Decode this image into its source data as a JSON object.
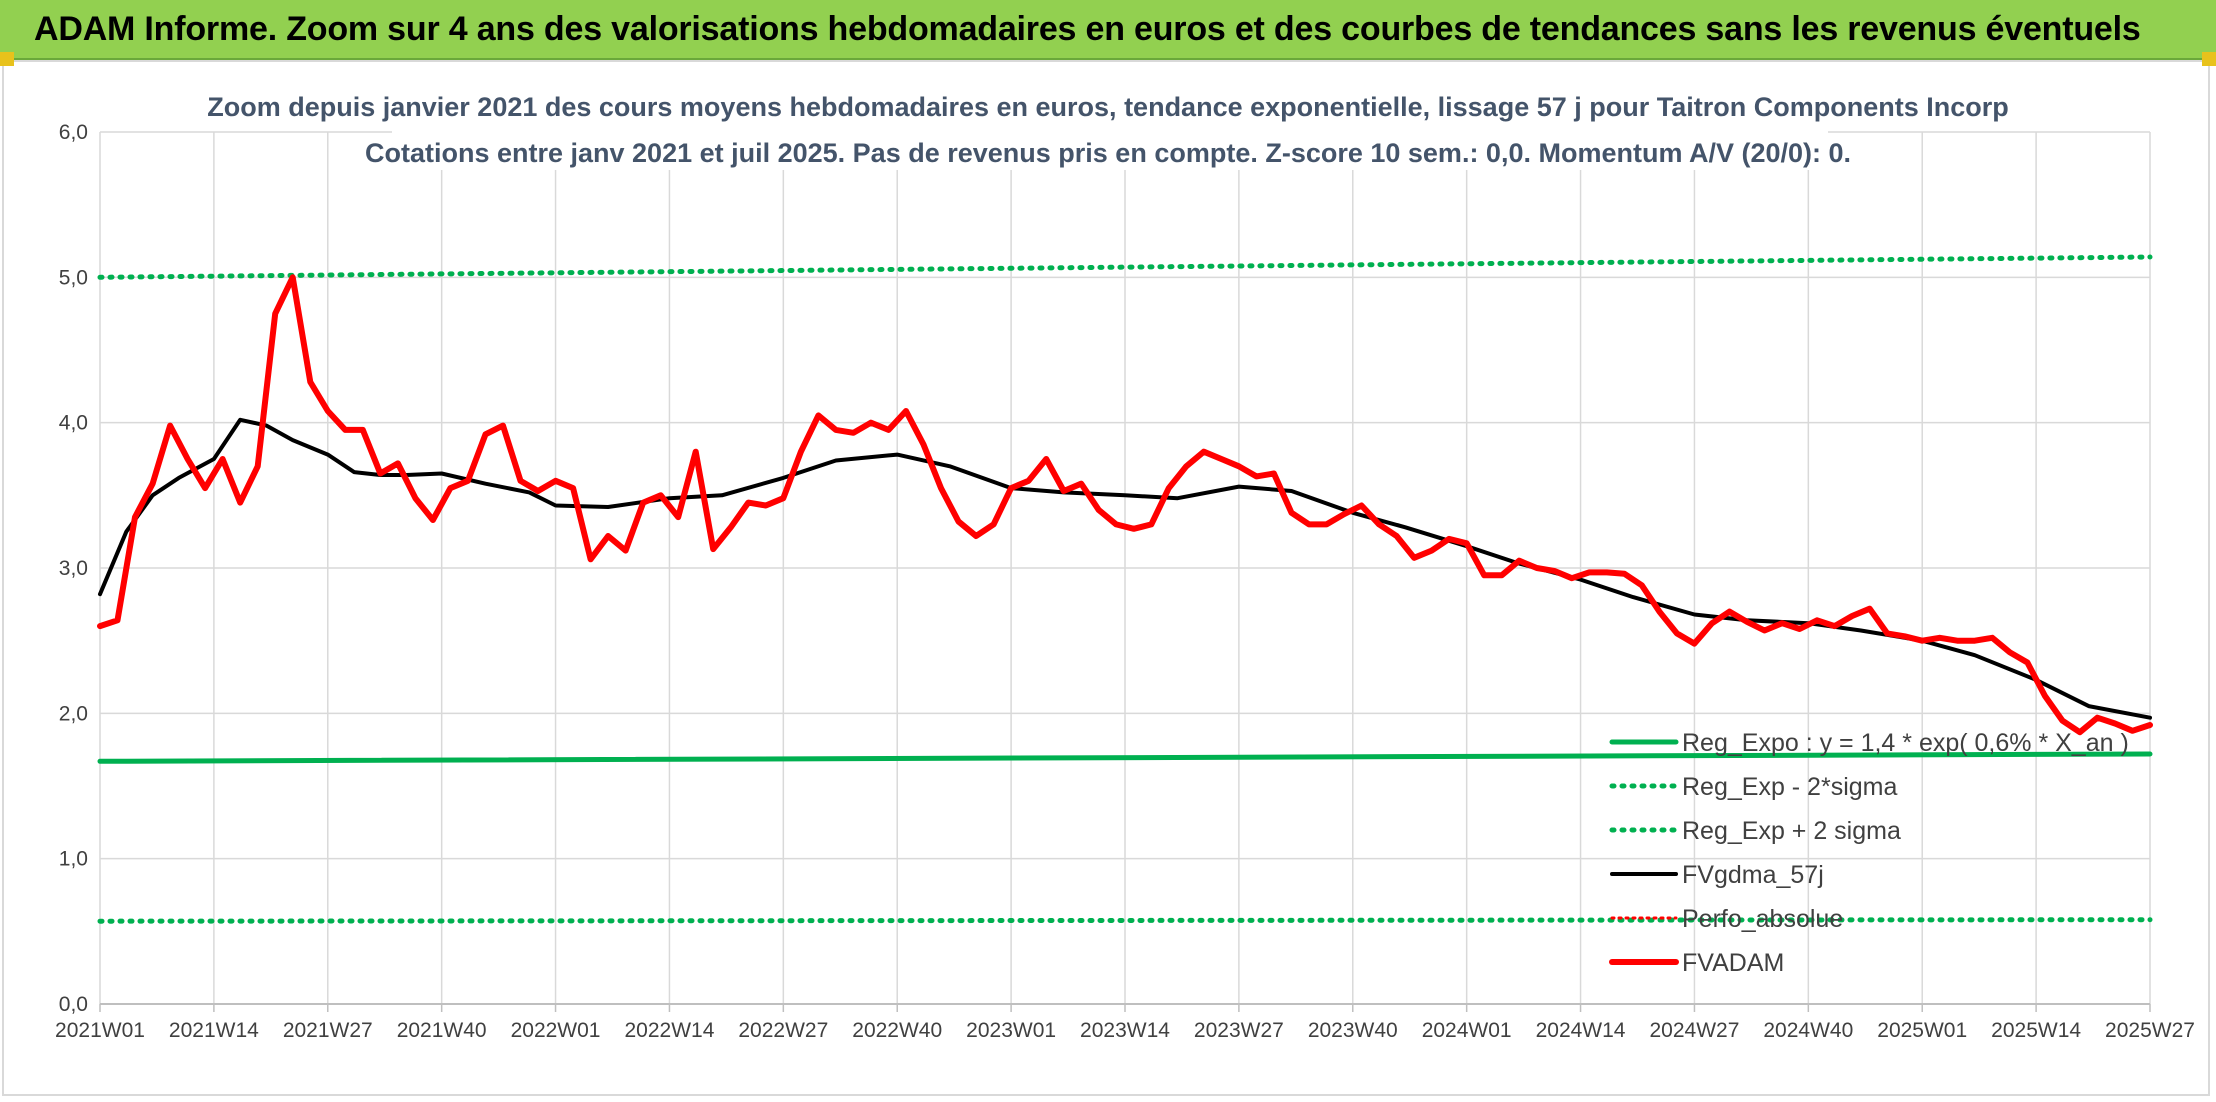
{
  "banner": {
    "title": "ADAM Informe. Zoom sur 4 ans des valorisations hebdomadaires en euros et des courbes de tendances sans les revenus éventuels"
  },
  "colors": {
    "banner_bg": "#92d050",
    "reg_expo": "#00b050",
    "fvgdma": "#000000",
    "fvadam": "#ff0000",
    "perfo": "#ff0000",
    "grid": "#d9d9d9"
  },
  "chart_data": {
    "type": "line",
    "title": "Zoom depuis janvier 2021 des cours moyens hebdomadaires en euros, tendance exponentielle, lissage 57 j pour Taitron Components Incorp",
    "subtitle": "Cotations entre janv 2021 et juil 2025. Pas de revenus pris en compte. Z-score 10 sem.: 0,0. Momentum A/V (20/0): 0.",
    "xlabel": "",
    "ylabel": "",
    "ylim": [
      0,
      6
    ],
    "y_ticks": [
      "0,0",
      "1,0",
      "2,0",
      "3,0",
      "4,0",
      "5,0",
      "6,0"
    ],
    "x_ticks": [
      "2021W01",
      "2021W14",
      "2021W27",
      "2021W40",
      "2022W01",
      "2022W14",
      "2022W27",
      "2022W40",
      "2023W01",
      "2023W14",
      "2023W27",
      "2023W40",
      "2024W01",
      "2024W14",
      "2024W27",
      "2024W40",
      "2025W01",
      "2025W14",
      "2025W27"
    ],
    "grid": true,
    "legend_position": "bottom-right",
    "series": [
      {
        "name": "Reg_Expo : y = 1,4 * exp( 0,6% * X_an )",
        "style": "solid-thick",
        "x": [
          "2021W01",
          "2025W27"
        ],
        "values": [
          1.67,
          1.72
        ]
      },
      {
        "name": "Reg_Exp - 2*sigma",
        "style": "dotted",
        "x": [
          "2021W01",
          "2025W27"
        ],
        "values": [
          0.57,
          0.58
        ]
      },
      {
        "name": "Reg_Exp + 2 sigma",
        "style": "dotted",
        "x": [
          "2021W01",
          "2025W27"
        ],
        "values": [
          5.0,
          5.14
        ]
      },
      {
        "name": "FVgdma_57j",
        "style": "solid",
        "x": [
          "2021W01",
          "2021W04",
          "2021W07",
          "2021W10",
          "2021W14",
          "2021W17",
          "2021W20",
          "2021W23",
          "2021W27",
          "2021W30",
          "2021W33",
          "2021W36",
          "2021W40",
          "2021W45",
          "2021W50",
          "2022W01",
          "2022W07",
          "2022W14",
          "2022W20",
          "2022W27",
          "2022W33",
          "2022W40",
          "2022W46",
          "2023W01",
          "2023W07",
          "2023W14",
          "2023W20",
          "2023W27",
          "2023W33",
          "2023W40",
          "2023W46",
          "2024W01",
          "2024W07",
          "2024W14",
          "2024W20",
          "2024W27",
          "2024W33",
          "2024W40",
          "2024W46",
          "2025W01",
          "2025W07",
          "2025W14",
          "2025W20",
          "2025W27"
        ],
        "values": [
          2.82,
          3.25,
          3.5,
          3.62,
          3.75,
          4.02,
          3.98,
          3.88,
          3.78,
          3.66,
          3.64,
          3.64,
          3.65,
          3.58,
          3.52,
          3.43,
          3.42,
          3.48,
          3.5,
          3.62,
          3.74,
          3.78,
          3.7,
          3.55,
          3.52,
          3.5,
          3.48,
          3.56,
          3.53,
          3.38,
          3.28,
          3.15,
          3.03,
          2.92,
          2.8,
          2.68,
          2.64,
          2.62,
          2.57,
          2.5,
          2.4,
          2.23,
          2.05,
          1.97
        ]
      },
      {
        "name": "Perfo_absolue",
        "style": "dotted-legend-only",
        "x": [],
        "values": []
      },
      {
        "name": "FVADAM",
        "style": "solid-thick",
        "x": [
          "2021W01",
          "2021W03",
          "2021W05",
          "2021W07",
          "2021W09",
          "2021W11",
          "2021W13",
          "2021W15",
          "2021W17",
          "2021W19",
          "2021W21",
          "2021W23",
          "2021W25",
          "2021W27",
          "2021W29",
          "2021W31",
          "2021W33",
          "2021W35",
          "2021W37",
          "2021W39",
          "2021W41",
          "2021W43",
          "2021W45",
          "2021W47",
          "2021W49",
          "2021W51",
          "2022W01",
          "2022W03",
          "2022W05",
          "2022W07",
          "2022W09",
          "2022W11",
          "2022W13",
          "2022W15",
          "2022W17",
          "2022W19",
          "2022W21",
          "2022W23",
          "2022W25",
          "2022W27",
          "2022W29",
          "2022W31",
          "2022W33",
          "2022W35",
          "2022W37",
          "2022W39",
          "2022W41",
          "2022W43",
          "2022W45",
          "2022W47",
          "2022W49",
          "2022W51",
          "2023W01",
          "2023W03",
          "2023W05",
          "2023W07",
          "2023W09",
          "2023W11",
          "2023W13",
          "2023W15",
          "2023W17",
          "2023W19",
          "2023W21",
          "2023W23",
          "2023W25",
          "2023W27",
          "2023W29",
          "2023W31",
          "2023W33",
          "2023W35",
          "2023W37",
          "2023W39",
          "2023W41",
          "2023W43",
          "2023W45",
          "2023W47",
          "2023W49",
          "2023W51",
          "2024W01",
          "2024W03",
          "2024W05",
          "2024W07",
          "2024W09",
          "2024W11",
          "2024W13",
          "2024W15",
          "2024W17",
          "2024W19",
          "2024W21",
          "2024W23",
          "2024W25",
          "2024W27",
          "2024W29",
          "2024W31",
          "2024W33",
          "2024W35",
          "2024W37",
          "2024W39",
          "2024W41",
          "2024W43",
          "2024W45",
          "2024W47",
          "2024W49",
          "2024W51",
          "2025W01",
          "2025W03",
          "2025W05",
          "2025W07",
          "2025W09",
          "2025W11",
          "2025W13",
          "2025W15",
          "2025W17",
          "2025W19",
          "2025W21",
          "2025W23",
          "2025W25",
          "2025W27"
        ],
        "values": [
          2.6,
          2.64,
          3.35,
          3.58,
          3.98,
          3.75,
          3.55,
          3.75,
          3.45,
          3.7,
          4.75,
          5.0,
          4.28,
          4.08,
          3.95,
          3.95,
          3.65,
          3.72,
          3.48,
          3.33,
          3.55,
          3.6,
          3.92,
          3.98,
          3.6,
          3.53,
          3.6,
          3.55,
          3.06,
          3.22,
          3.12,
          3.45,
          3.5,
          3.35,
          3.8,
          3.13,
          3.28,
          3.45,
          3.43,
          3.48,
          3.8,
          4.05,
          3.95,
          3.93,
          4.0,
          3.95,
          4.08,
          3.85,
          3.55,
          3.32,
          3.22,
          3.3,
          3.55,
          3.6,
          3.75,
          3.53,
          3.58,
          3.4,
          3.3,
          3.27,
          3.3,
          3.55,
          3.7,
          3.8,
          3.75,
          3.7,
          3.63,
          3.65,
          3.38,
          3.3,
          3.3,
          3.37,
          3.43,
          3.3,
          3.22,
          3.07,
          3.12,
          3.2,
          3.17,
          2.95,
          2.95,
          3.05,
          3.0,
          2.98,
          2.93,
          2.97,
          2.97,
          2.96,
          2.88,
          2.7,
          2.55,
          2.48,
          2.62,
          2.7,
          2.63,
          2.57,
          2.62,
          2.58,
          2.64,
          2.6,
          2.67,
          2.72,
          2.55,
          2.53,
          2.5,
          2.52,
          2.5,
          2.5,
          2.52,
          2.42,
          2.35,
          2.12,
          1.95,
          1.87,
          1.97,
          1.93,
          1.88,
          1.92
        ]
      }
    ]
  }
}
